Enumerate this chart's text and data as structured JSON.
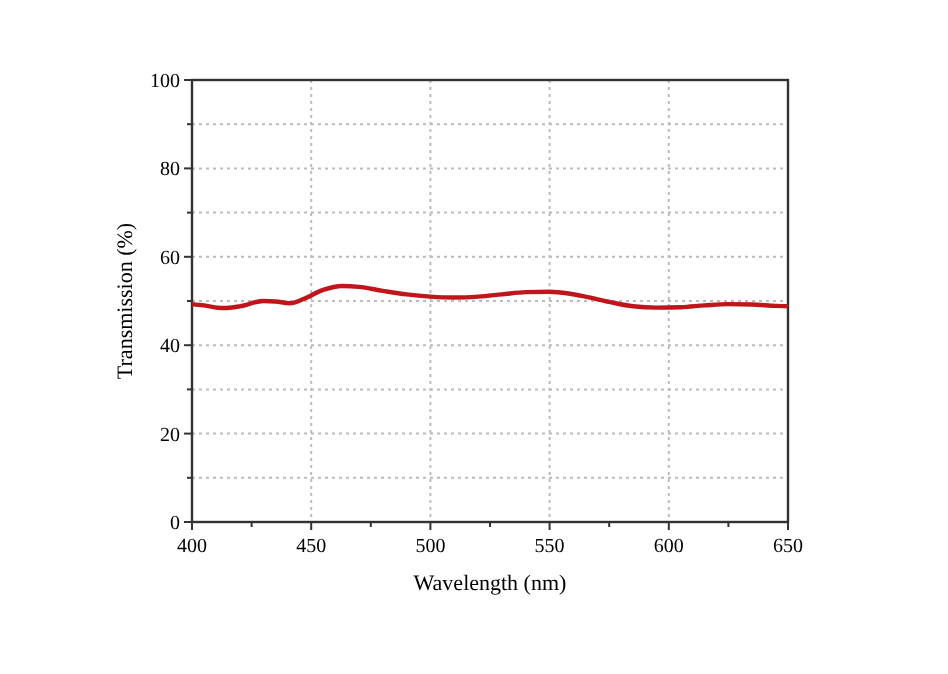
{
  "chart_data": {
    "type": "line",
    "xlabel": "Wavelength (nm)",
    "ylabel": "Transmission (%)",
    "xlim": [
      400,
      650
    ],
    "xticks": [
      400,
      {
        "value": 425,
        "label": null
      },
      450,
      {
        "value": 475,
        "label": null
      },
      500,
      {
        "value": 525,
        "label": null
      },
      550,
      {
        "value": 575,
        "label": null
      },
      600,
      {
        "value": 625,
        "label": null
      },
      650
    ],
    "ylim": [
      0,
      100
    ],
    "yticks": [
      0,
      {
        "value": 10,
        "label": null
      },
      20,
      {
        "value": 30,
        "label": null
      },
      40,
      {
        "value": 50,
        "label": null
      },
      60,
      {
        "value": 70,
        "label": null
      },
      80,
      {
        "value": 90,
        "label": null
      },
      100
    ],
    "grid": true,
    "marker": "none",
    "line_style": "solid",
    "series": [
      {
        "color": "#c0151b",
        "x": [
          400,
          405,
          413,
          420,
          430,
          435,
          441,
          447,
          455,
          463,
          470,
          480,
          490,
          500,
          510,
          520,
          530,
          540,
          550,
          558,
          565,
          575,
          585,
          595,
          605,
          615,
          625,
          635,
          645,
          650
        ],
        "values": [
          49.3,
          49,
          48.4,
          48.8,
          50,
          49.9,
          49.5,
          50.5,
          52.5,
          53.4,
          53.2,
          52.3,
          51.5,
          51,
          50.8,
          51,
          51.5,
          52,
          52.1,
          51.7,
          51,
          49.8,
          48.8,
          48.5,
          48.6,
          49,
          49.3,
          49.2,
          48.9,
          48.8
        ]
      }
    ]
  }
}
